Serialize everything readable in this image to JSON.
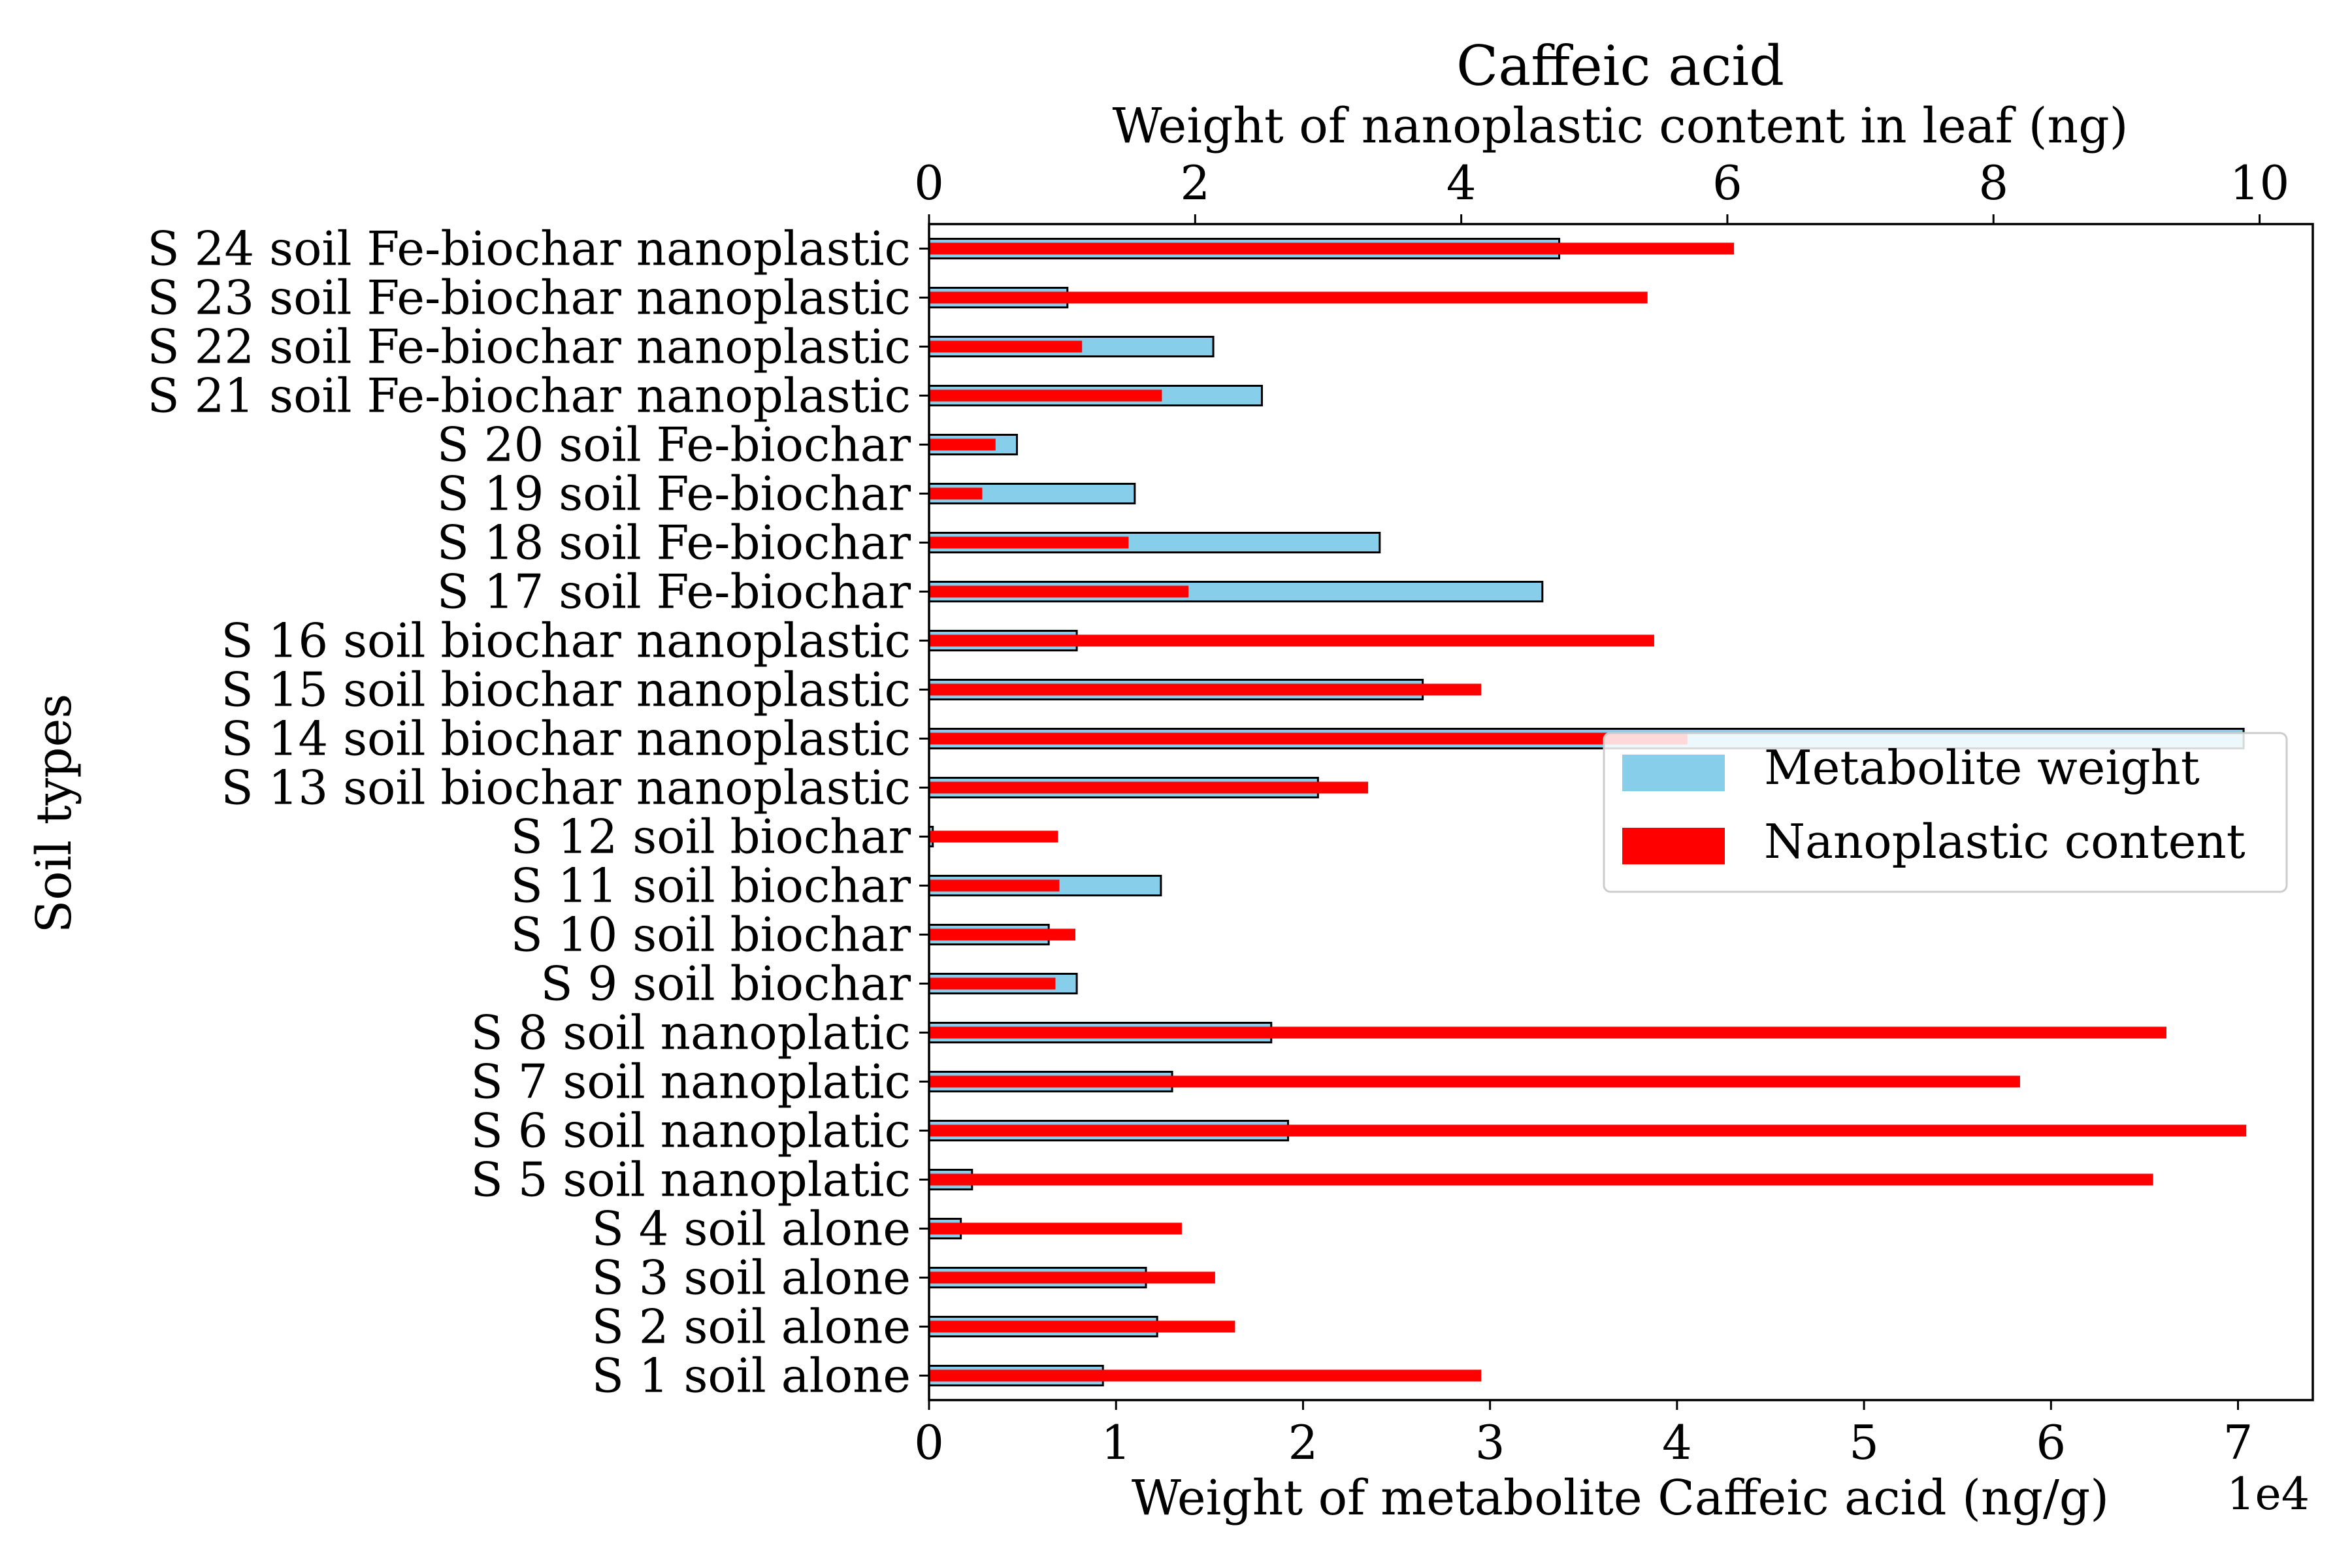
{
  "chart_data": {
    "type": "bar",
    "orientation": "horizontal",
    "title": "Caffeic acid",
    "title_color": "#a52a2a",
    "ylabel": "Soil types",
    "xlabel_bottom": "Weight of metabolite Caffeic acid (ng/g)",
    "xlabel_top": "Weight of nanoplastic content in leaf (ng)",
    "bottom_offset_text": "1e4",
    "bottom_xlim": [
      0,
      7.4
    ],
    "top_xlim": [
      0,
      10.4
    ],
    "bottom_ticks": [
      "0",
      "1",
      "2",
      "3",
      "4",
      "5",
      "6",
      "7"
    ],
    "top_ticks": [
      "0",
      "2",
      "4",
      "6",
      "8",
      "10"
    ],
    "grid": false,
    "legend_position": "right",
    "categories": [
      "S 1 soil alone",
      "S 2 soil alone",
      "S 3 soil alone",
      "S 4 soil alone",
      "S 5 soil nanoplatic",
      "S 6 soil nanoplatic",
      "S 7 soil nanoplatic",
      "S 8 soil nanoplatic",
      "S 9 soil biochar",
      "S 10 soil biochar",
      "S 11 soil biochar",
      "S 12 soil biochar",
      "S 13 soil biochar nanoplastic",
      "S 14 soil biochar nanoplastic",
      "S 15 soil biochar nanoplastic",
      "S 16 soil biochar nanoplastic",
      "S 17 soil Fe-biochar",
      "S 18 soil Fe-biochar",
      "S 19 soil Fe-biochar",
      "S 20 soil Fe-biochar",
      "S 21 soil Fe-biochar nanoplastic",
      "S 22 soil Fe-biochar nanoplastic",
      "S 23 soil Fe-biochar nanoplastic",
      "S 24 soil Fe-biochar nanoplastic"
    ],
    "series": [
      {
        "name": "Metabolite weight",
        "color": "#87ceeb",
        "axis": "bottom",
        "unit_multiplier": 10000,
        "values": [
          0.93,
          1.22,
          1.16,
          0.17,
          0.23,
          1.92,
          1.3,
          1.83,
          0.79,
          0.64,
          1.24,
          0.02,
          2.08,
          7.03,
          2.64,
          0.79,
          3.28,
          2.41,
          1.1,
          0.47,
          1.78,
          1.52,
          0.74,
          3.37
        ]
      },
      {
        "name": "Nanoplastic content",
        "color": "#ff0000",
        "axis": "top",
        "values": [
          4.15,
          2.3,
          2.15,
          1.9,
          9.2,
          9.9,
          8.2,
          9.3,
          0.95,
          1.1,
          0.98,
          0.97,
          3.3,
          5.7,
          4.15,
          5.45,
          1.95,
          1.5,
          0.4,
          0.5,
          1.75,
          1.15,
          5.4,
          6.05
        ]
      }
    ]
  }
}
